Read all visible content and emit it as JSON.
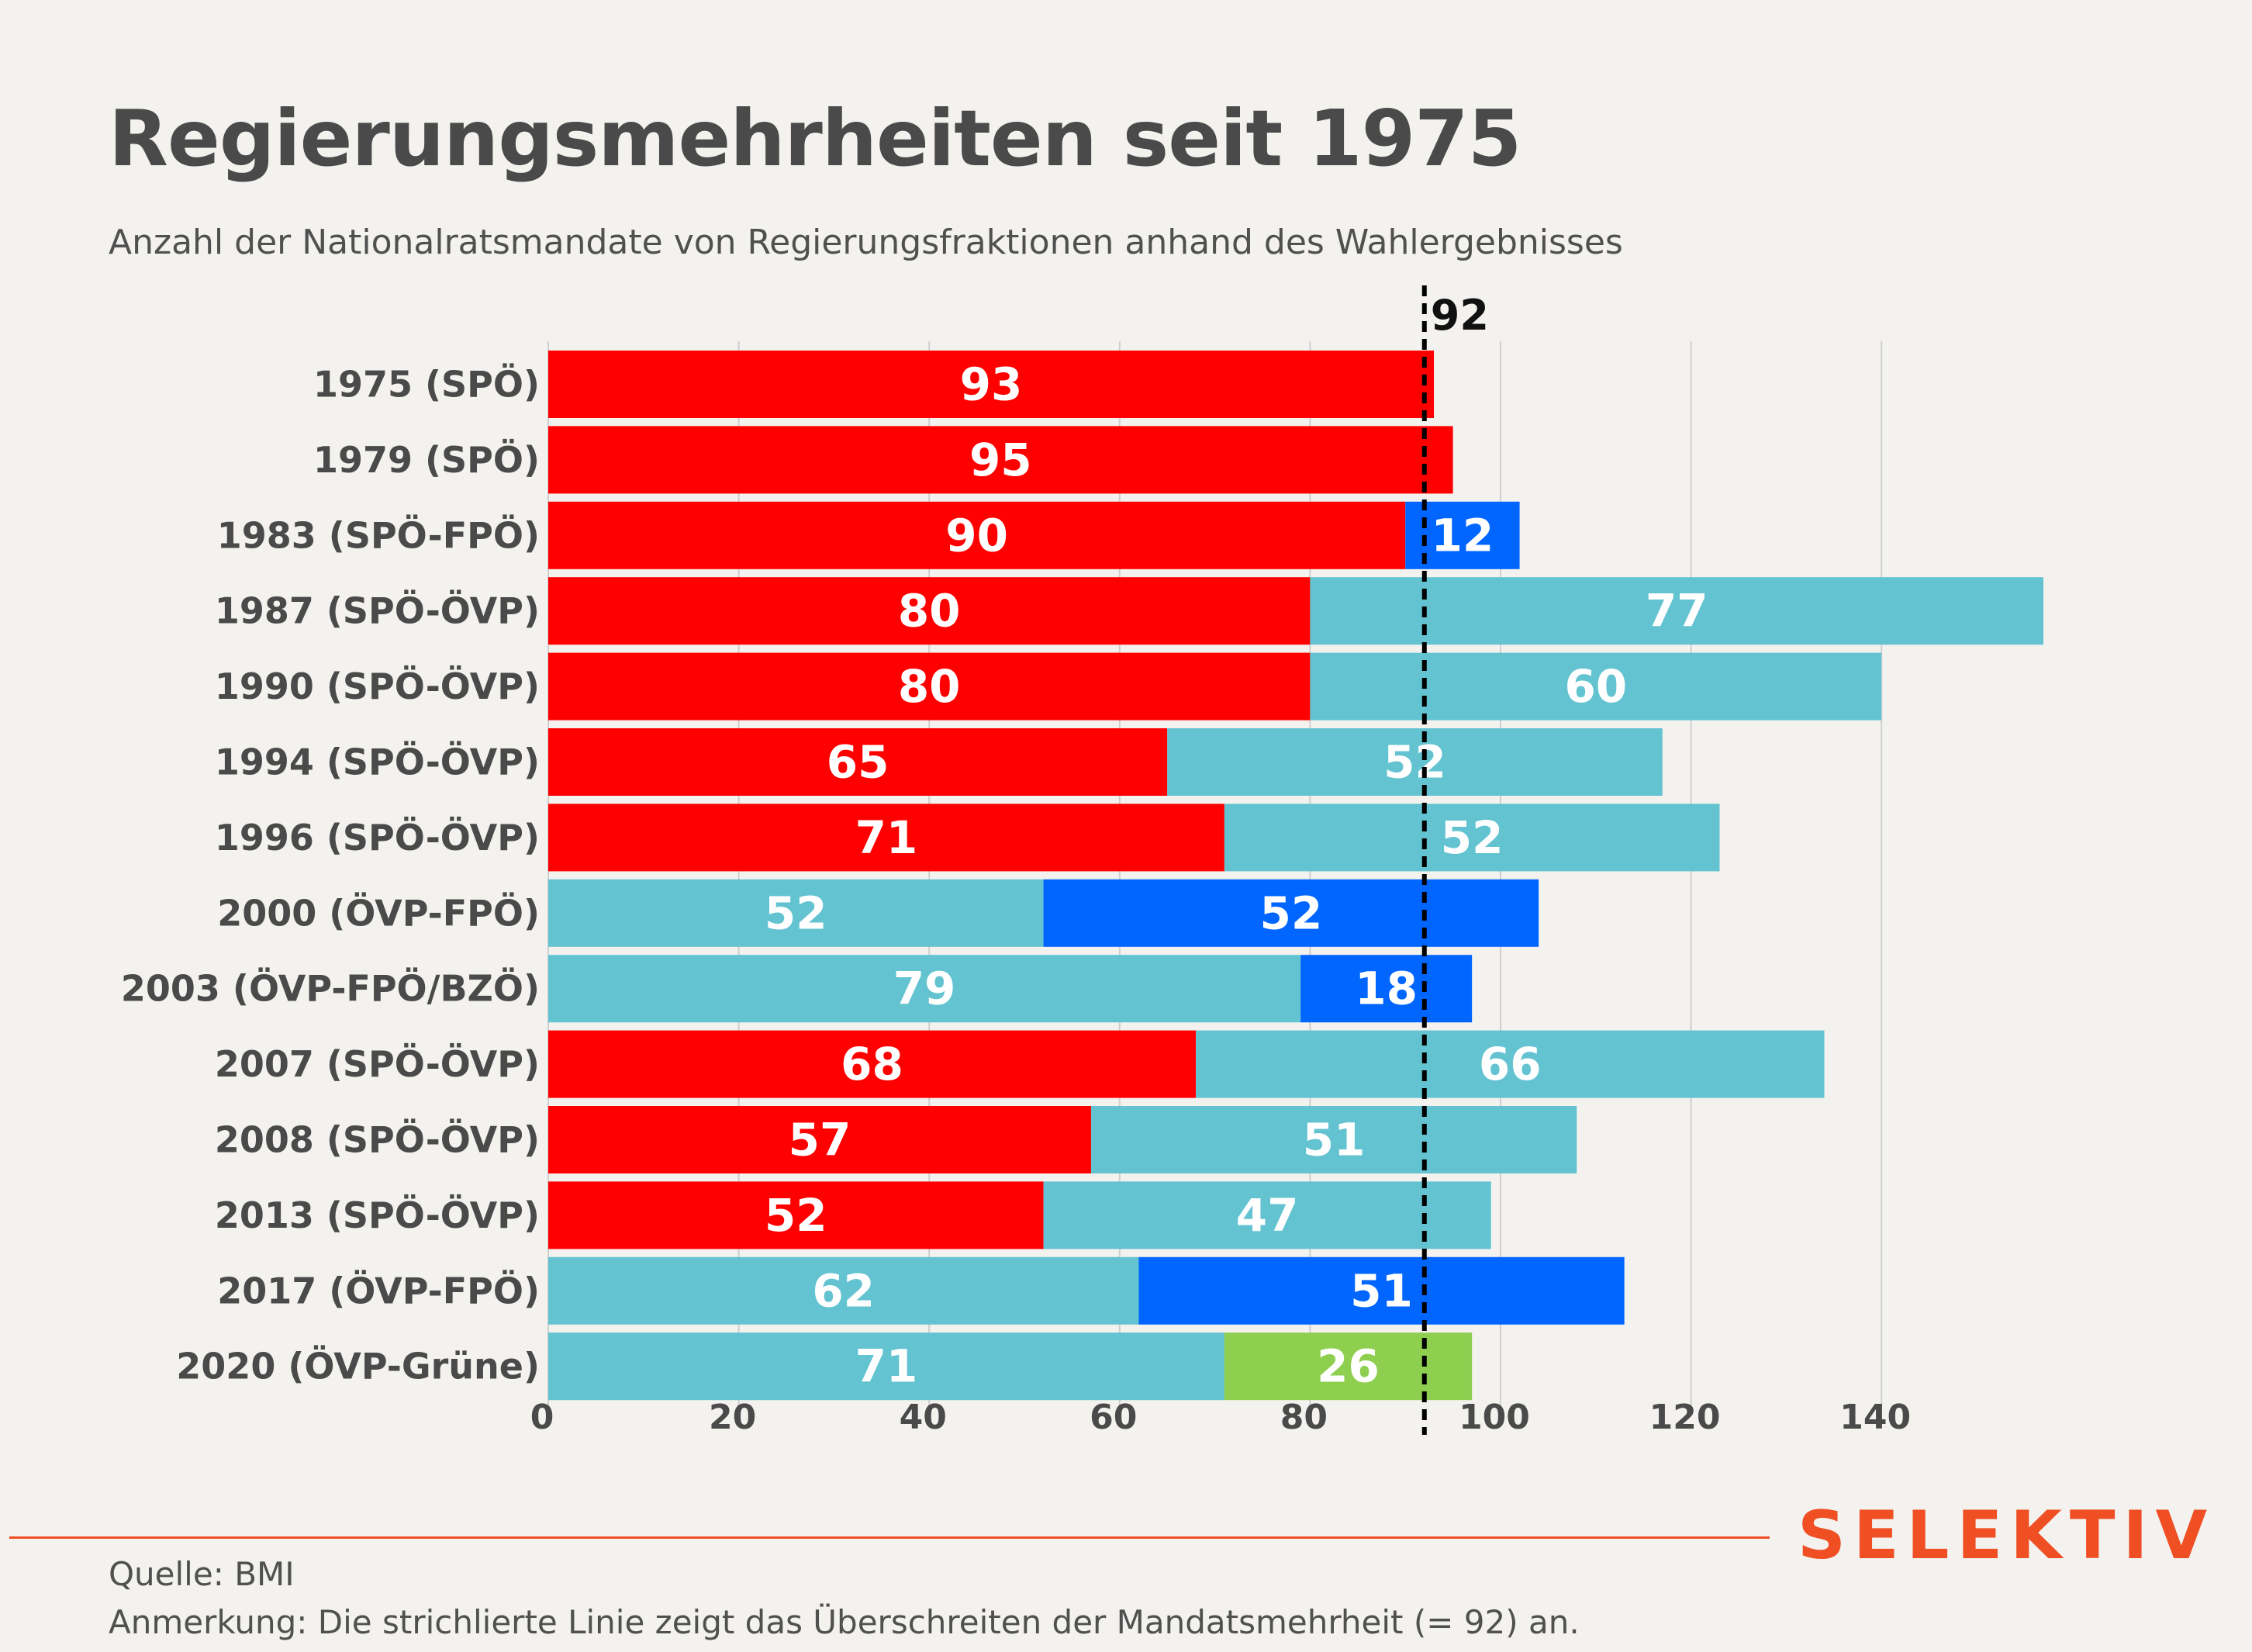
{
  "title": "Regierungsmehrheiten seit 1975",
  "subtitle": "Anzahl der Nationalratsmandate von Regierungsfraktionen anhand des Wahlergebnisses",
  "brand": "SELEKTIV",
  "source": "Quelle: BMI",
  "note": "Anmerkung: Die strichlierte Linie zeigt das Überschreiten der Mandatsmehrheit (= 92) an.",
  "colors": {
    "SPÖ": "#ff0000",
    "ÖVP": "#63c3d1",
    "FPÖ": "#0066ff",
    "Grüne": "#8ecf50",
    "grid": "#cfcfcf",
    "background": "#f3f2ef",
    "brand": "#f04e23"
  },
  "chart_data": {
    "type": "bar",
    "orientation": "horizontal",
    "stacked": true,
    "categories": [
      "1975 (SPÖ)",
      "1979 (SPÖ)",
      "1983 (SPÖ-FPÖ)",
      "1987 (SPÖ-ÖVP)",
      "1990 (SPÖ-ÖVP)",
      "1994 (SPÖ-ÖVP)",
      "1996 (SPÖ-ÖVP)",
      "2000 (ÖVP-FPÖ)",
      "2003 (ÖVP-FPÖ/BZÖ)",
      "2007 (SPÖ-ÖVP)",
      "2008 (SPÖ-ÖVP)",
      "2013 (SPÖ-ÖVP)",
      "2017 (ÖVP-FPÖ)",
      "2020 (ÖVP-Grüne)"
    ],
    "segments": [
      [
        {
          "party": "SPÖ",
          "value": 93
        }
      ],
      [
        {
          "party": "SPÖ",
          "value": 95
        }
      ],
      [
        {
          "party": "SPÖ",
          "value": 90
        },
        {
          "party": "FPÖ",
          "value": 12
        }
      ],
      [
        {
          "party": "SPÖ",
          "value": 80
        },
        {
          "party": "ÖVP",
          "value": 77
        }
      ],
      [
        {
          "party": "SPÖ",
          "value": 80
        },
        {
          "party": "ÖVP",
          "value": 60
        }
      ],
      [
        {
          "party": "SPÖ",
          "value": 65
        },
        {
          "party": "ÖVP",
          "value": 52
        }
      ],
      [
        {
          "party": "SPÖ",
          "value": 71
        },
        {
          "party": "ÖVP",
          "value": 52
        }
      ],
      [
        {
          "party": "ÖVP",
          "value": 52
        },
        {
          "party": "FPÖ",
          "value": 52
        }
      ],
      [
        {
          "party": "ÖVP",
          "value": 79
        },
        {
          "party": "FPÖ",
          "value": 18
        }
      ],
      [
        {
          "party": "SPÖ",
          "value": 68
        },
        {
          "party": "ÖVP",
          "value": 66
        }
      ],
      [
        {
          "party": "SPÖ",
          "value": 57
        },
        {
          "party": "ÖVP",
          "value": 51
        }
      ],
      [
        {
          "party": "SPÖ",
          "value": 52
        },
        {
          "party": "ÖVP",
          "value": 47
        }
      ],
      [
        {
          "party": "ÖVP",
          "value": 62
        },
        {
          "party": "FPÖ",
          "value": 51
        }
      ],
      [
        {
          "party": "ÖVP",
          "value": 71
        },
        {
          "party": "Grüne",
          "value": 26
        }
      ]
    ],
    "xticks": [
      0,
      20,
      40,
      60,
      80,
      100,
      120,
      140
    ],
    "xlim": [
      0,
      160
    ],
    "threshold": {
      "value": 92,
      "label": "92",
      "style": "dashed"
    },
    "grid": true
  }
}
